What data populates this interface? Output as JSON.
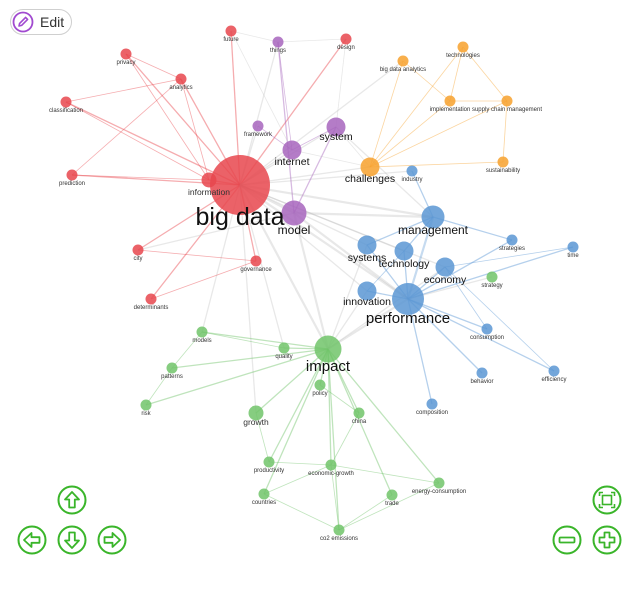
{
  "toolbar": {
    "edit_label": "Edit"
  },
  "colors": {
    "red": "#e8474e",
    "purple": "#a765bd",
    "orange": "#f7a12d",
    "blue": "#5b97d4",
    "green": "#71c46a",
    "control_green": "#3ab52a",
    "edit_purple": "#a14ad0",
    "edge_gray": "#bdbdbd"
  },
  "controls": {
    "pan_up": "arrow-up-icon",
    "pan_left": "arrow-left-icon",
    "pan_down": "arrow-down-icon",
    "pan_right": "arrow-right-icon",
    "fit": "fit-screen-icon",
    "zoom_out": "minus-icon",
    "zoom_in": "plus-icon"
  },
  "graph": {
    "nodes": [
      {
        "id": "big data",
        "cluster": "red",
        "size": "xl"
      },
      {
        "id": "information",
        "cluster": "red",
        "size": "s"
      },
      {
        "id": "future",
        "cluster": "red",
        "size": "xs"
      },
      {
        "id": "design",
        "cluster": "red",
        "size": "xs"
      },
      {
        "id": "privacy",
        "cluster": "red",
        "size": "xs"
      },
      {
        "id": "analytics",
        "cluster": "red",
        "size": "xs"
      },
      {
        "id": "classification",
        "cluster": "red",
        "size": "xs"
      },
      {
        "id": "prediction",
        "cluster": "red",
        "size": "xs"
      },
      {
        "id": "city",
        "cluster": "red",
        "size": "xs"
      },
      {
        "id": "governance",
        "cluster": "red",
        "size": "xs"
      },
      {
        "id": "determinants",
        "cluster": "red",
        "size": "xs"
      },
      {
        "id": "things",
        "cluster": "purple",
        "size": "xs"
      },
      {
        "id": "framework",
        "cluster": "purple",
        "size": "xs"
      },
      {
        "id": "internet",
        "cluster": "purple",
        "size": "m"
      },
      {
        "id": "system",
        "cluster": "purple",
        "size": "m"
      },
      {
        "id": "model",
        "cluster": "purple",
        "size": "l"
      },
      {
        "id": "technologies",
        "cluster": "orange",
        "size": "xs"
      },
      {
        "id": "big data analytics",
        "cluster": "orange",
        "size": "xs"
      },
      {
        "id": "implementation",
        "cluster": "orange",
        "size": "xs"
      },
      {
        "id": "supply chain management",
        "cluster": "orange",
        "size": "xs"
      },
      {
        "id": "challenges",
        "cluster": "orange",
        "size": "m"
      },
      {
        "id": "sustainability",
        "cluster": "orange",
        "size": "xs"
      },
      {
        "id": "industry",
        "cluster": "blue",
        "size": "xs"
      },
      {
        "id": "management",
        "cluster": "blue",
        "size": "l"
      },
      {
        "id": "systems",
        "cluster": "blue",
        "size": "m"
      },
      {
        "id": "technology",
        "cluster": "blue",
        "size": "m"
      },
      {
        "id": "economy",
        "cluster": "blue",
        "size": "m"
      },
      {
        "id": "innovation",
        "cluster": "blue",
        "size": "m"
      },
      {
        "id": "performance",
        "cluster": "blue",
        "size": "xl"
      },
      {
        "id": "strategies",
        "cluster": "blue",
        "size": "xs"
      },
      {
        "id": "time",
        "cluster": "blue",
        "size": "xs"
      },
      {
        "id": "consumption",
        "cluster": "blue",
        "size": "xs"
      },
      {
        "id": "behavior",
        "cluster": "blue",
        "size": "xs"
      },
      {
        "id": "efficiency",
        "cluster": "blue",
        "size": "xs"
      },
      {
        "id": "composition",
        "cluster": "blue",
        "size": "xs"
      },
      {
        "id": "strategy",
        "cluster": "green",
        "size": "xs"
      },
      {
        "id": "models",
        "cluster": "green",
        "size": "xs"
      },
      {
        "id": "quality",
        "cluster": "green",
        "size": "xs"
      },
      {
        "id": "impact",
        "cluster": "green",
        "size": "l"
      },
      {
        "id": "patterns",
        "cluster": "green",
        "size": "xs"
      },
      {
        "id": "policy",
        "cluster": "green",
        "size": "xs"
      },
      {
        "id": "risk",
        "cluster": "green",
        "size": "xs"
      },
      {
        "id": "growth",
        "cluster": "green",
        "size": "s"
      },
      {
        "id": "china",
        "cluster": "green",
        "size": "xs"
      },
      {
        "id": "productivity",
        "cluster": "green",
        "size": "xs"
      },
      {
        "id": "economic-growth",
        "cluster": "green",
        "size": "xs"
      },
      {
        "id": "countries",
        "cluster": "green",
        "size": "xs"
      },
      {
        "id": "trade",
        "cluster": "green",
        "size": "xs"
      },
      {
        "id": "energy-consumption",
        "cluster": "green",
        "size": "xs"
      },
      {
        "id": "co2 emissions",
        "cluster": "green",
        "size": "xs"
      }
    ]
  }
}
